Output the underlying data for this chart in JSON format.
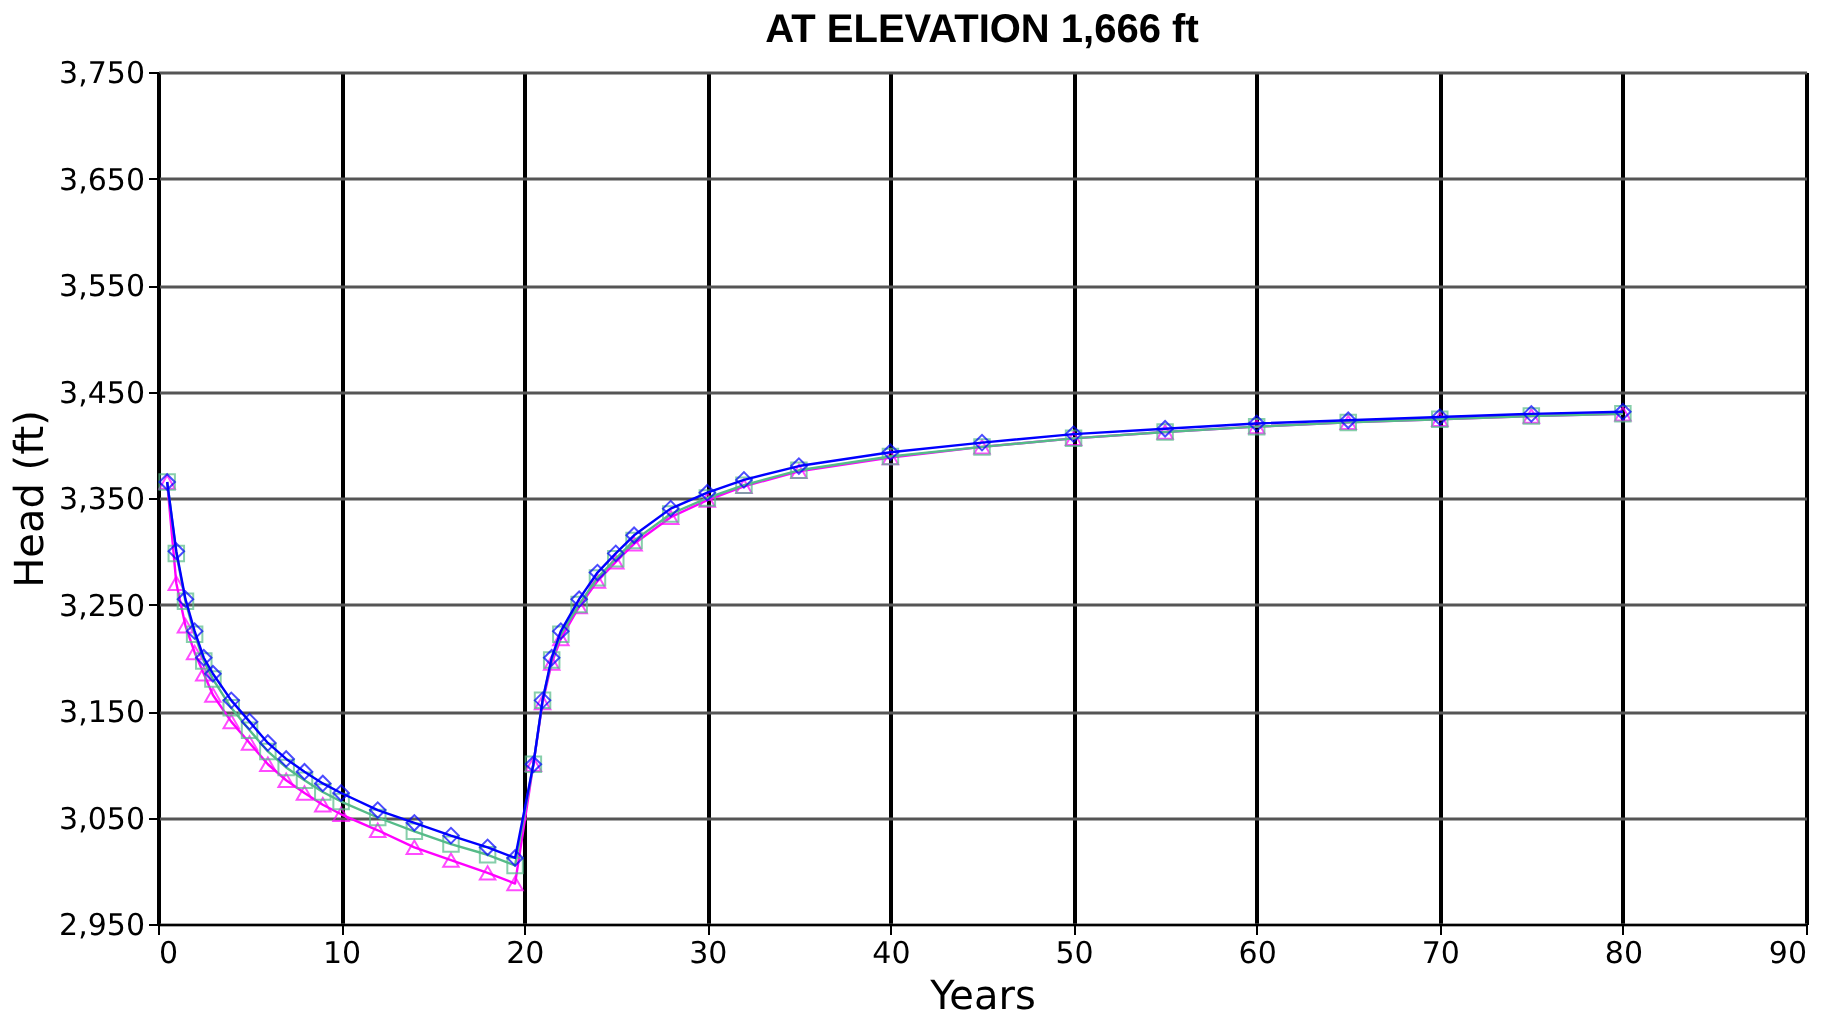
{
  "chart_data": {
    "type": "line",
    "title": "AT ELEVATION 1,666 ft",
    "xlabel": "Years",
    "ylabel": "Head  (ft)",
    "x": [
      0.5,
      1,
      1.5,
      2,
      2.5,
      3,
      4,
      5,
      6,
      7,
      8,
      9,
      10,
      12,
      14,
      16,
      18,
      19.5,
      20.5,
      21,
      21.5,
      22,
      23,
      24,
      25,
      26,
      28,
      30,
      32,
      35,
      40,
      45,
      50,
      55,
      60,
      65,
      70,
      75,
      80
    ],
    "series": [
      {
        "color": "#ff00ff",
        "marker": "triangle",
        "values": [
          3365,
          3270,
          3230,
          3205,
          3185,
          3165,
          3140,
          3120,
          3100,
          3085,
          3073,
          3062,
          3053,
          3038,
          3022,
          3010,
          2998,
          2988,
          3100,
          3158,
          3195,
          3218,
          3248,
          3272,
          3290,
          3307,
          3332,
          3348,
          3361,
          3375,
          3388,
          3398,
          3406,
          3412,
          3417,
          3421,
          3424,
          3427,
          3429
        ]
      },
      {
        "color": "#55bb88",
        "marker": "square",
        "values": [
          3365,
          3298,
          3253,
          3222,
          3197,
          3180,
          3153,
          3132,
          3112,
          3097,
          3085,
          3074,
          3065,
          3050,
          3037,
          3025,
          3015,
          3005,
          3100,
          3160,
          3198,
          3222,
          3250,
          3275,
          3293,
          3310,
          3335,
          3350,
          3362,
          3376,
          3389,
          3398,
          3406,
          3412,
          3417,
          3421,
          3424,
          3427,
          3429
        ]
      },
      {
        "color": "#0000ff",
        "marker": "diamond",
        "values": [
          3365,
          3300,
          3255,
          3225,
          3200,
          3185,
          3160,
          3140,
          3120,
          3105,
          3093,
          3082,
          3073,
          3057,
          3045,
          3033,
          3022,
          3012,
          3100,
          3160,
          3200,
          3225,
          3255,
          3280,
          3298,
          3315,
          3340,
          3355,
          3367,
          3380,
          3393,
          3402,
          3410,
          3415,
          3420,
          3423,
          3426,
          3429,
          3431
        ]
      }
    ],
    "xlim": [
      0,
      90
    ],
    "xticks": [
      0,
      10,
      20,
      30,
      40,
      50,
      60,
      70,
      80,
      90
    ],
    "ylim": [
      2950,
      3750
    ],
    "yticks": [
      {
        "value": 2950,
        "label": "2,950"
      },
      {
        "value": 3050,
        "label": "3,050"
      },
      {
        "value": 3150,
        "label": "3,150"
      },
      {
        "value": 3250,
        "label": "3,250"
      },
      {
        "value": 3350,
        "label": "3,350"
      },
      {
        "value": 3450,
        "label": "3,450"
      },
      {
        "value": 3550,
        "label": "3,550"
      },
      {
        "value": 3650,
        "label": "3,650"
      },
      {
        "value": 3750,
        "label": "3,750"
      }
    ],
    "grid": true,
    "line_style": "solid"
  }
}
